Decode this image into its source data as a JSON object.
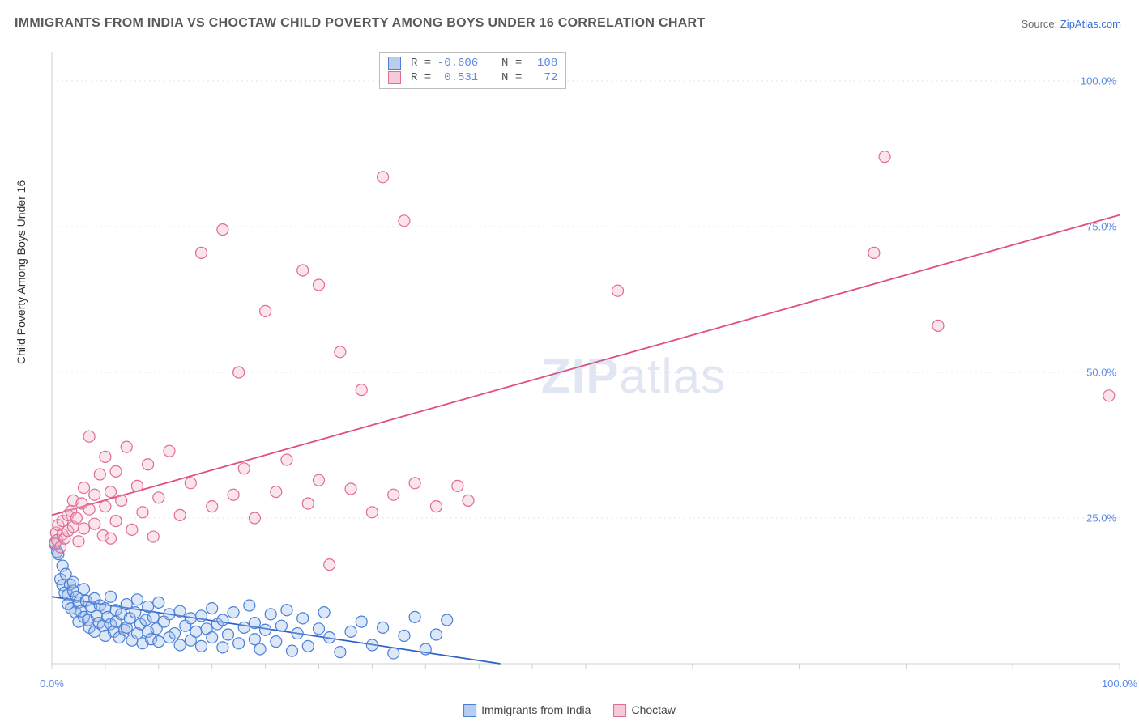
{
  "title": "IMMIGRANTS FROM INDIA VS CHOCTAW CHILD POVERTY AMONG BOYS UNDER 16 CORRELATION CHART",
  "source_prefix": "Source: ",
  "source_link": "ZipAtlas.com",
  "y_axis_label": "Child Poverty Among Boys Under 16",
  "watermark_bold": "ZIP",
  "watermark_rest": "atlas",
  "chart": {
    "type": "scatter",
    "background_color": "#ffffff",
    "grid_color": "#e3e3e3",
    "axis_color": "#cfcfcf",
    "tick_mark_color": "#cfcfcf",
    "xlim": [
      0,
      100
    ],
    "ylim": [
      0,
      105
    ],
    "x_ticks": [
      0,
      100
    ],
    "y_ticks": [
      25,
      50,
      75,
      100
    ],
    "x_tick_labels": [
      "0.0%",
      "100.0%"
    ],
    "y_tick_labels": [
      "25.0%",
      "50.0%",
      "75.0%",
      "100.0%"
    ],
    "x_minor_ticks": [
      0,
      5,
      10,
      15,
      20,
      25,
      30,
      35,
      40,
      45,
      50,
      60,
      70,
      80,
      90,
      100
    ],
    "marker_radius": 7,
    "marker_stroke_width": 1.2,
    "marker_fill_opacity": 0.35,
    "tick_label_color": "#5b89e8",
    "tick_label_fontsize": 13,
    "axis_label_fontsize": 14,
    "title_fontsize": 16,
    "title_color": "#5a5a5a",
    "trend_line_width": 1.8
  },
  "series": [
    {
      "name": "Immigrants from India",
      "color_stroke": "#4a7fd6",
      "color_fill": "#9bb9ea",
      "trend_color": "#2f62c9",
      "trend": {
        "x1": 0,
        "y1": 11.5,
        "x2": 42,
        "y2": 0
      },
      "points": [
        [
          0.3,
          20.5
        ],
        [
          0.5,
          19.2
        ],
        [
          0.6,
          18.8
        ],
        [
          0.8,
          14.5
        ],
        [
          1,
          16.8
        ],
        [
          1,
          13.5
        ],
        [
          1.2,
          12.2
        ],
        [
          1.3,
          15.4
        ],
        [
          1.5,
          11.8
        ],
        [
          1.5,
          10.2
        ],
        [
          1.7,
          13.6
        ],
        [
          1.8,
          9.5
        ],
        [
          2,
          12.5
        ],
        [
          2,
          14.0
        ],
        [
          2.2,
          8.8
        ],
        [
          2.3,
          11.5
        ],
        [
          2.5,
          10.5
        ],
        [
          2.5,
          7.2
        ],
        [
          2.7,
          9.0
        ],
        [
          3,
          12.8
        ],
        [
          3,
          8.0
        ],
        [
          3.2,
          10.8
        ],
        [
          3.4,
          7.5
        ],
        [
          3.5,
          6.2
        ],
        [
          3.7,
          9.8
        ],
        [
          4,
          11.2
        ],
        [
          4,
          5.5
        ],
        [
          4.2,
          8.2
        ],
        [
          4.4,
          7.0
        ],
        [
          4.5,
          10.0
        ],
        [
          4.8,
          6.5
        ],
        [
          5,
          9.5
        ],
        [
          5,
          4.8
        ],
        [
          5.2,
          8.0
        ],
        [
          5.5,
          6.8
        ],
        [
          5.5,
          11.5
        ],
        [
          5.8,
          5.5
        ],
        [
          6,
          9.2
        ],
        [
          6,
          7.2
        ],
        [
          6.3,
          4.5
        ],
        [
          6.5,
          8.5
        ],
        [
          6.8,
          5.8
        ],
        [
          7,
          10.2
        ],
        [
          7,
          6.2
        ],
        [
          7.3,
          7.8
        ],
        [
          7.5,
          4.0
        ],
        [
          7.8,
          8.8
        ],
        [
          8,
          5.2
        ],
        [
          8,
          11.0
        ],
        [
          8.3,
          6.8
        ],
        [
          8.5,
          3.5
        ],
        [
          8.8,
          7.5
        ],
        [
          9,
          5.5
        ],
        [
          9,
          9.8
        ],
        [
          9.3,
          4.2
        ],
        [
          9.5,
          8.0
        ],
        [
          9.8,
          6.0
        ],
        [
          10,
          3.8
        ],
        [
          10,
          10.5
        ],
        [
          10.5,
          7.2
        ],
        [
          11,
          4.5
        ],
        [
          11,
          8.5
        ],
        [
          11.5,
          5.2
        ],
        [
          12,
          9.0
        ],
        [
          12,
          3.2
        ],
        [
          12.5,
          6.5
        ],
        [
          13,
          7.8
        ],
        [
          13,
          4.0
        ],
        [
          13.5,
          5.5
        ],
        [
          14,
          8.2
        ],
        [
          14,
          3.0
        ],
        [
          14.5,
          6.0
        ],
        [
          15,
          9.5
        ],
        [
          15,
          4.5
        ],
        [
          15.5,
          6.8
        ],
        [
          16,
          2.8
        ],
        [
          16,
          7.5
        ],
        [
          16.5,
          5.0
        ],
        [
          17,
          8.8
        ],
        [
          17.5,
          3.5
        ],
        [
          18,
          6.2
        ],
        [
          18.5,
          10.0
        ],
        [
          19,
          4.2
        ],
        [
          19,
          7.0
        ],
        [
          19.5,
          2.5
        ],
        [
          20,
          5.8
        ],
        [
          20.5,
          8.5
        ],
        [
          21,
          3.8
        ],
        [
          21.5,
          6.5
        ],
        [
          22,
          9.2
        ],
        [
          22.5,
          2.2
        ],
        [
          23,
          5.2
        ],
        [
          23.5,
          7.8
        ],
        [
          24,
          3.0
        ],
        [
          25,
          6.0
        ],
        [
          25.5,
          8.8
        ],
        [
          26,
          4.5
        ],
        [
          27,
          2.0
        ],
        [
          28,
          5.5
        ],
        [
          29,
          7.2
        ],
        [
          30,
          3.2
        ],
        [
          31,
          6.2
        ],
        [
          32,
          1.8
        ],
        [
          33,
          4.8
        ],
        [
          34,
          8.0
        ],
        [
          35,
          2.5
        ],
        [
          36,
          5.0
        ],
        [
          37,
          7.5
        ]
      ]
    },
    {
      "name": "Choctaw",
      "color_stroke": "#e06b93",
      "color_fill": "#f2b5c9",
      "trend_color": "#e04e80",
      "trend": {
        "x1": 0,
        "y1": 25.5,
        "x2": 100,
        "y2": 77
      },
      "points": [
        [
          0.3,
          20.8
        ],
        [
          0.4,
          22.5
        ],
        [
          0.5,
          21.2
        ],
        [
          0.6,
          23.8
        ],
        [
          0.8,
          20.0
        ],
        [
          1,
          22.2
        ],
        [
          1,
          24.5
        ],
        [
          1.2,
          21.5
        ],
        [
          1.5,
          25.5
        ],
        [
          1.5,
          22.8
        ],
        [
          1.8,
          26.2
        ],
        [
          2,
          23.5
        ],
        [
          2,
          28.0
        ],
        [
          2.3,
          25.0
        ],
        [
          2.5,
          21.0
        ],
        [
          2.8,
          27.5
        ],
        [
          3,
          30.2
        ],
        [
          3,
          23.2
        ],
        [
          3.5,
          26.5
        ],
        [
          3.5,
          39.0
        ],
        [
          4,
          29.0
        ],
        [
          4,
          24.0
        ],
        [
          4.5,
          32.5
        ],
        [
          4.8,
          22.0
        ],
        [
          5,
          27.0
        ],
        [
          5,
          35.5
        ],
        [
          5.5,
          29.5
        ],
        [
          5.5,
          21.5
        ],
        [
          6,
          24.5
        ],
        [
          6,
          33.0
        ],
        [
          6.5,
          28.0
        ],
        [
          7,
          37.2
        ],
        [
          7.5,
          23.0
        ],
        [
          8,
          30.5
        ],
        [
          8.5,
          26.0
        ],
        [
          9,
          34.2
        ],
        [
          9.5,
          21.8
        ],
        [
          10,
          28.5
        ],
        [
          11,
          36.5
        ],
        [
          12,
          25.5
        ],
        [
          13,
          31.0
        ],
        [
          14,
          70.5
        ],
        [
          15,
          27.0
        ],
        [
          16,
          74.5
        ],
        [
          17,
          29.0
        ],
        [
          17.5,
          50.0
        ],
        [
          18,
          33.5
        ],
        [
          19,
          25.0
        ],
        [
          20,
          60.5
        ],
        [
          21,
          29.5
        ],
        [
          22,
          35.0
        ],
        [
          23.5,
          67.5
        ],
        [
          24,
          27.5
        ],
        [
          25,
          31.5
        ],
        [
          25,
          65.0
        ],
        [
          26,
          17.0
        ],
        [
          27,
          53.5
        ],
        [
          28,
          30.0
        ],
        [
          29,
          47.0
        ],
        [
          30,
          26.0
        ],
        [
          31,
          83.5
        ],
        [
          32,
          29.0
        ],
        [
          33,
          76.0
        ],
        [
          34,
          31.0
        ],
        [
          36,
          27.0
        ],
        [
          38,
          30.5
        ],
        [
          39,
          28.0
        ],
        [
          53,
          64.0
        ],
        [
          77,
          70.5
        ],
        [
          78,
          87.0
        ],
        [
          83,
          58.0
        ],
        [
          99,
          46.0
        ]
      ]
    }
  ],
  "stats_legend": {
    "rows": [
      {
        "swatch_stroke": "#4a7fd6",
        "swatch_fill": "#b8cdf0",
        "r_label": "R =",
        "r_value": "-0.606",
        "n_label": "N =",
        "n_value": "108"
      },
      {
        "swatch_stroke": "#e06b93",
        "swatch_fill": "#f6cad9",
        "r_label": "R =",
        "r_value": "0.531",
        "n_label": "N =",
        "n_value": "72"
      }
    ]
  },
  "bottom_legend": {
    "items": [
      {
        "label": "Immigrants from India",
        "swatch_stroke": "#4a7fd6",
        "swatch_fill": "#b8cdf0"
      },
      {
        "label": "Choctaw",
        "swatch_stroke": "#e06b93",
        "swatch_fill": "#f6cad9"
      }
    ]
  }
}
